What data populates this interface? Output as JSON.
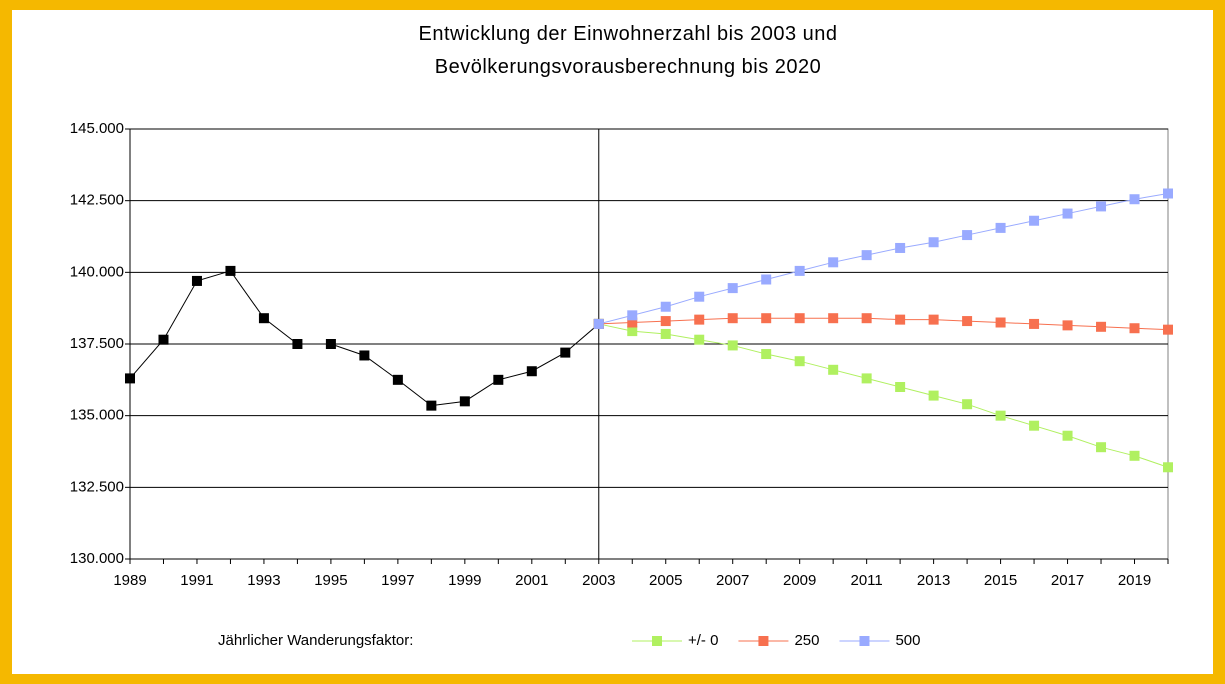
{
  "chart_data": {
    "type": "line",
    "title": "Entwicklung der Einwohnerzahl bis 2003 und Bevölkerungsvorausberechnung bis 2020",
    "legend_title": "Jährlicher Wanderungsfaktor:",
    "x": [
      1989,
      1990,
      1991,
      1992,
      1993,
      1994,
      1995,
      1996,
      1997,
      1998,
      1999,
      2000,
      2001,
      2002,
      2003,
      2004,
      2005,
      2006,
      2007,
      2008,
      2009,
      2010,
      2011,
      2012,
      2013,
      2014,
      2015,
      2016,
      2017,
      2018,
      2019,
      2020
    ],
    "xlim": [
      1989,
      2020
    ],
    "xticks": [
      1989,
      1991,
      1993,
      1995,
      1997,
      1999,
      2001,
      2003,
      2005,
      2007,
      2009,
      2011,
      2013,
      2015,
      2017,
      2019
    ],
    "ylim": [
      130000,
      145000
    ],
    "yticks": [
      {
        "value": 130000,
        "label": "130.000"
      },
      {
        "value": 132500,
        "label": "132.500"
      },
      {
        "value": 135000,
        "label": "135.000"
      },
      {
        "value": 137500,
        "label": "137.500"
      },
      {
        "value": 140000,
        "label": "140.000"
      },
      {
        "value": 142500,
        "label": "142.500"
      },
      {
        "value": 145000,
        "label": "145.000"
      }
    ],
    "grid": true,
    "vlines": [
      2003
    ],
    "series": [
      {
        "color": "#000000",
        "values": [
          136300,
          137650,
          139700,
          140050,
          138400,
          137500,
          137500,
          137100,
          136250,
          135350,
          135500,
          136250,
          136550,
          137200,
          138200,
          null,
          null,
          null,
          null,
          null,
          null,
          null,
          null,
          null,
          null,
          null,
          null,
          null,
          null,
          null,
          null,
          null
        ]
      },
      {
        "name": "+/- 0",
        "color": "#b0f060",
        "values": [
          null,
          null,
          null,
          null,
          null,
          null,
          null,
          null,
          null,
          null,
          null,
          null,
          null,
          null,
          138200,
          137950,
          137850,
          137650,
          137450,
          137150,
          136900,
          136600,
          136300,
          136000,
          135700,
          135400,
          135000,
          134650,
          134300,
          133900,
          133600,
          133200
        ]
      },
      {
        "name": "250",
        "color": "#f7704f",
        "values": [
          null,
          null,
          null,
          null,
          null,
          null,
          null,
          null,
          null,
          null,
          null,
          null,
          null,
          null,
          138200,
          138250,
          138300,
          138350,
          138400,
          138400,
          138400,
          138400,
          138400,
          138350,
          138350,
          138300,
          138250,
          138200,
          138150,
          138100,
          138050,
          138000
        ]
      },
      {
        "name": "500",
        "color": "#99aaff",
        "values": [
          null,
          null,
          null,
          null,
          null,
          null,
          null,
          null,
          null,
          null,
          null,
          null,
          null,
          null,
          138200,
          138500,
          138800,
          139150,
          139450,
          139750,
          140050,
          140350,
          140600,
          140850,
          141050,
          141300,
          141550,
          141800,
          142050,
          142300,
          142550,
          142750
        ]
      }
    ]
  }
}
